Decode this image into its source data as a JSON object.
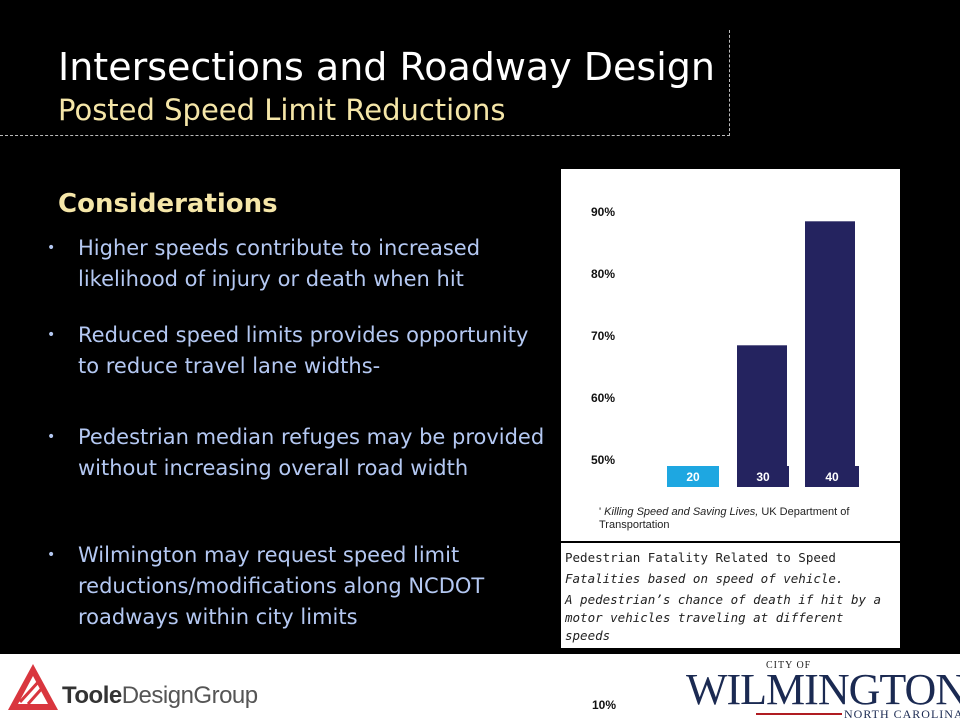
{
  "slide": {
    "title": "Intersections and Roadway Design",
    "subtitle": "Posted Speed Limit Reductions",
    "section_heading": "Considerations",
    "bullets": [
      "Higher speeds contribute to increased likelihood of injury or death when hit",
      "Reduced speed limits provides opportunity to reduce travel lane widths-",
      "Pedestrian median refuges may be provided without increasing overall road width",
      "Wilmington may request speed limit reductions/modifications along NCDOT roadways within city limits"
    ]
  },
  "chart_data": {
    "type": "bar",
    "categories": [
      "20",
      "30",
      "40"
    ],
    "values": [
      null,
      68.5,
      88.5
    ],
    "y_ticks": [
      "90%",
      "80%",
      "70%",
      "60%",
      "50%"
    ],
    "ylim": [
      50,
      90
    ],
    "colors": {
      "bar_20": "#1ea7e1",
      "bar_30": "#24235f",
      "bar_40": "#24235f"
    },
    "source_prefix": "'",
    "source_title": "Killing Speed and Saving Lives,",
    "source_rest": " UK Department of Transportation",
    "footer_tick": "10%"
  },
  "caption": {
    "title": "Pedestrian Fatality Related to Speed",
    "line1": "Fatalities based on speed of vehicle.",
    "line2": "A pedestrian’s chance of death if hit by a motor vehicles traveling at different speeds"
  },
  "footer": {
    "toole_brand": "Toole",
    "toole_rest": "DesignGroup",
    "city_of": "CITY OF",
    "city_name": "WILMINGTON",
    "state": "NORTH CAROLINA"
  }
}
